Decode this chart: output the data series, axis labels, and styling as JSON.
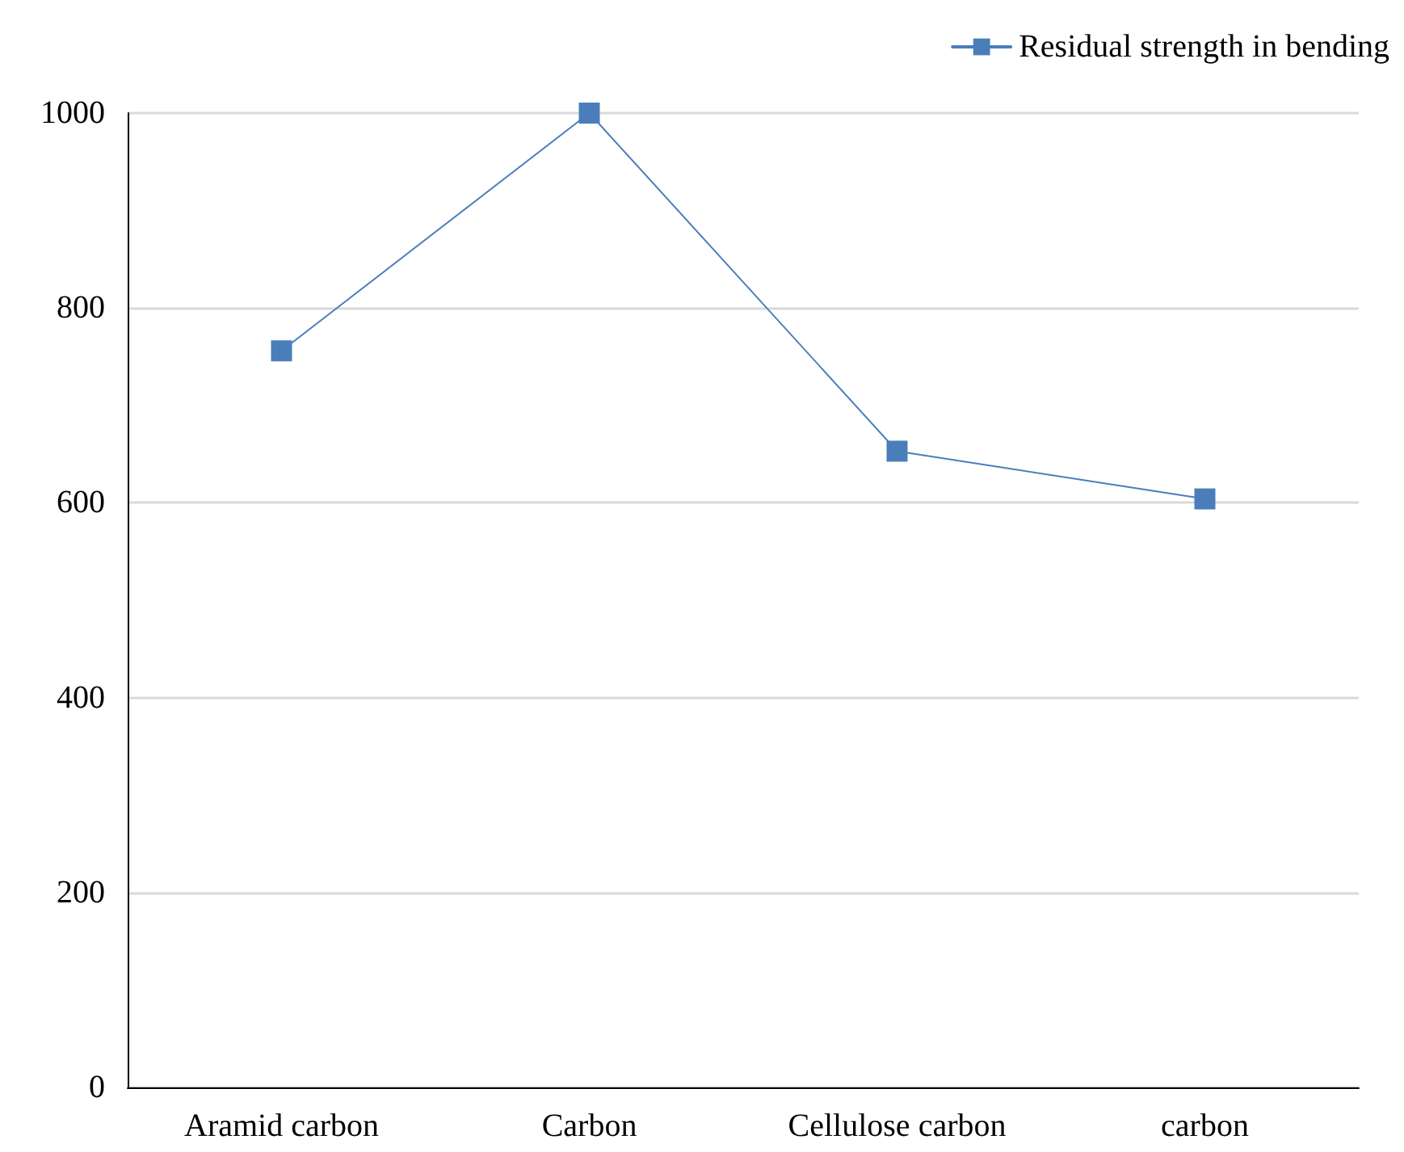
{
  "chart_data": {
    "type": "line",
    "categories": [
      "Aramid carbon",
      "Carbon",
      "Cellulose carbon",
      "carbon"
    ],
    "series": [
      {
        "name": "Residual strength in bending",
        "color": "#4a7ebb",
        "values": [
          756,
          1000,
          653,
          604
        ]
      }
    ],
    "ylim": [
      0,
      1000
    ],
    "yticks": [
      0,
      200,
      400,
      600,
      800,
      1000
    ],
    "grid": "y",
    "legend": "top right",
    "marker": "square",
    "line_style": "solid"
  }
}
